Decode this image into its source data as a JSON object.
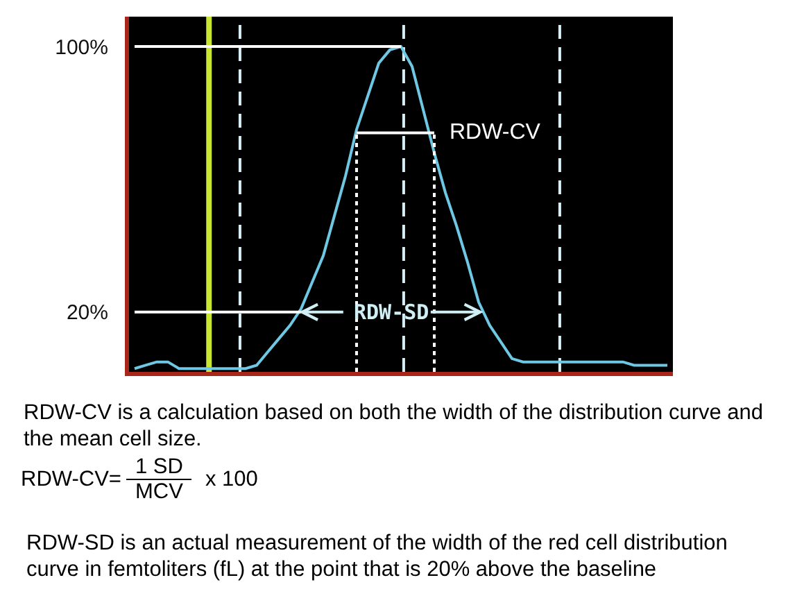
{
  "chart_data": {
    "type": "line",
    "categories": [
      null,
      null,
      null,
      null,
      null,
      null,
      null,
      null,
      null,
      null,
      null,
      null,
      null,
      null,
      null,
      null,
      null,
      null,
      null,
      null,
      null,
      null,
      null,
      null,
      null,
      null,
      null,
      null,
      null,
      null,
      null,
      null,
      null,
      null,
      null,
      null,
      null,
      null,
      null,
      null,
      null,
      null,
      null,
      null,
      null,
      null,
      null,
      null,
      null
    ],
    "series": [
      {
        "color": "#6ec8e4",
        "values": [
          3,
          4,
          5,
          5,
          3,
          3,
          3,
          3,
          3,
          3,
          3,
          4,
          8,
          12,
          16,
          21,
          29,
          37,
          49,
          61,
          75,
          85,
          95,
          99,
          100,
          94,
          81,
          68,
          56,
          46,
          35,
          23,
          16,
          11,
          6,
          5,
          5,
          5,
          5,
          5,
          5,
          5,
          5,
          5,
          5,
          4,
          4,
          4,
          4
        ]
      },
      {
        "color": "#ffffff",
        "values": [
          100,
          100,
          100,
          100,
          100,
          100,
          100,
          100,
          100,
          100,
          100,
          100,
          100,
          100,
          100,
          100,
          100,
          100,
          100,
          100,
          100,
          100,
          100,
          100,
          100,
          null,
          null,
          null,
          null,
          null,
          null,
          null,
          null,
          null,
          null,
          null,
          null,
          null,
          null,
          null,
          null,
          null,
          null,
          null,
          null,
          null,
          null,
          null,
          null
        ]
      },
      {
        "color": "#ffffff",
        "values": [
          20,
          20,
          20,
          20,
          20,
          20,
          20,
          20,
          20,
          20,
          20,
          20,
          20,
          20,
          20,
          20,
          null,
          null,
          null,
          null,
          null,
          null,
          null,
          null,
          null,
          null,
          null,
          null,
          null,
          null,
          null,
          null,
          null,
          null,
          null,
          null,
          null,
          null,
          null,
          null,
          null,
          null,
          null,
          null,
          null,
          null,
          null,
          null,
          null
        ]
      },
      {
        "name": "RDW-CV",
        "color": "#ffffff",
        "values": [
          null,
          null,
          null,
          null,
          null,
          null,
          null,
          null,
          null,
          null,
          null,
          null,
          null,
          null,
          null,
          null,
          null,
          null,
          null,
          null,
          74,
          74,
          74,
          74,
          74,
          74,
          74,
          74,
          null,
          null,
          null,
          null,
          null,
          null,
          null,
          null,
          null,
          null,
          null,
          null,
          null,
          null,
          null,
          null,
          null,
          null,
          null,
          null,
          null
        ]
      }
    ],
    "ylim": [
      2,
      109
    ],
    "yticks": [
      {
        "value": 100,
        "label": "100%"
      },
      {
        "value": 20,
        "label": "20%"
      }
    ],
    "tick_labels": "y",
    "annotations": [
      "RDW-SD",
      "RDW-CV is a calculation based on both the width of the distribution curve and the mean cell size.",
      "RDW-CV=",
      "1 SD",
      "MCV",
      "x 100",
      "RDW-SD is an actual measurement of the width of the red cell distribution curve in femtoliters (fL) at the point that is 20% above the baseline"
    ]
  }
}
